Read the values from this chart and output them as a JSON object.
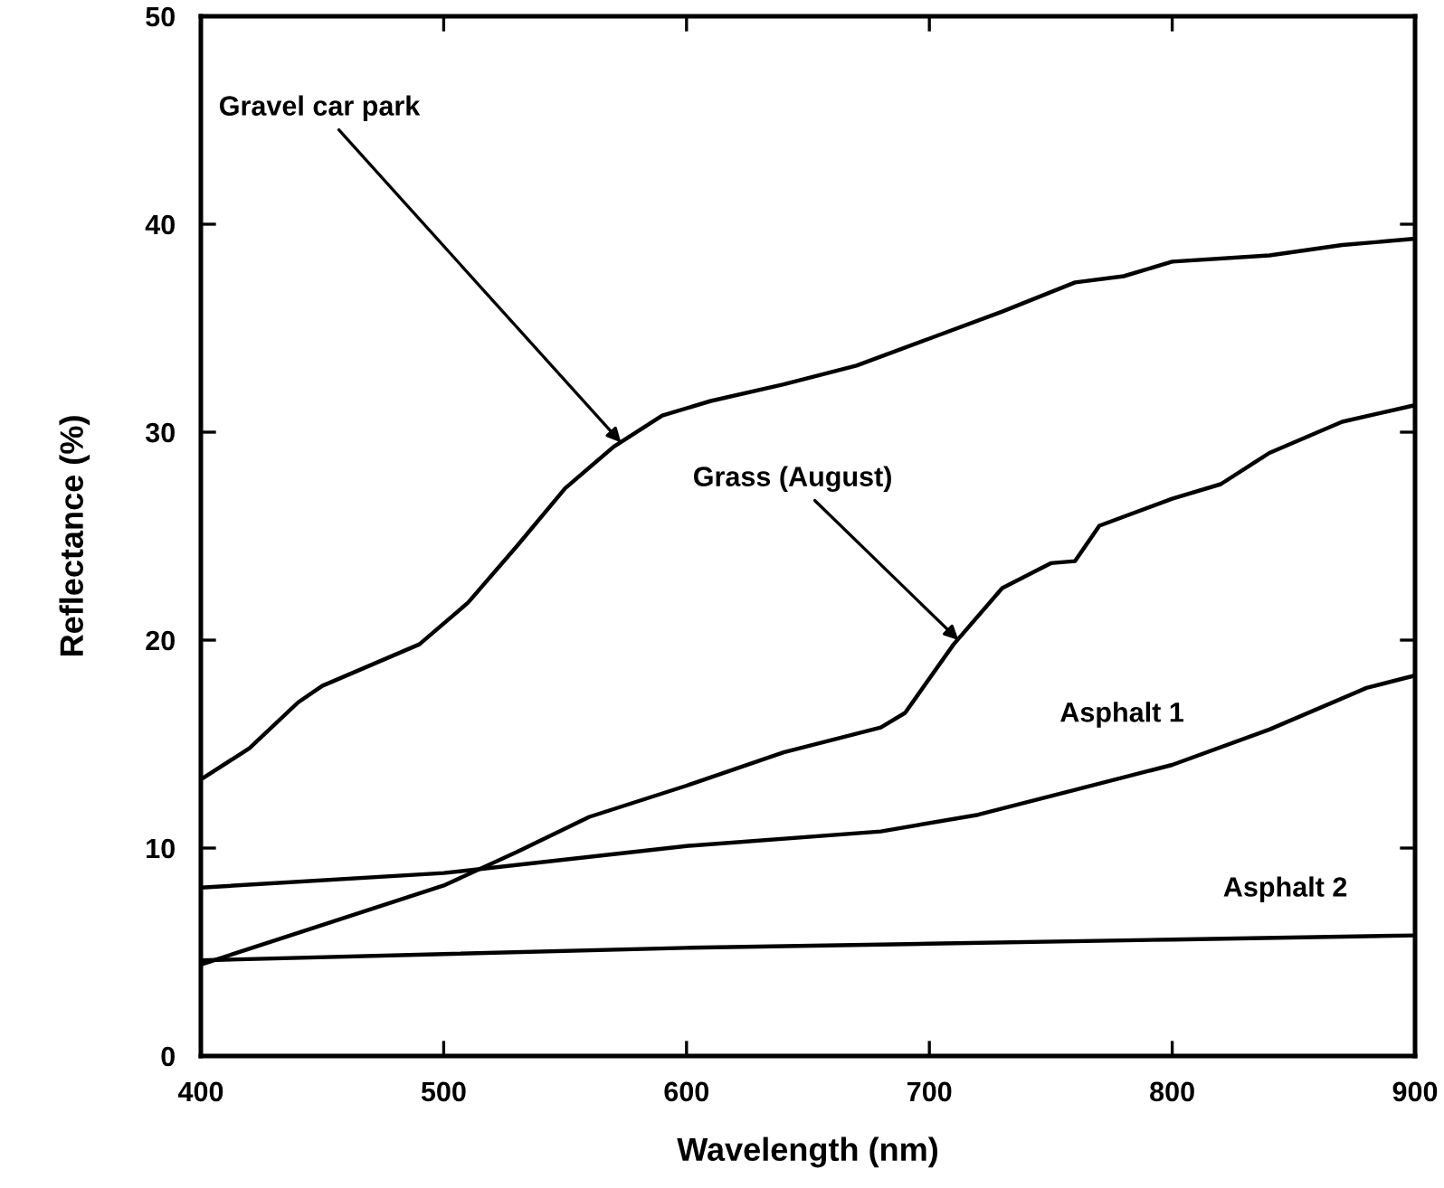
{
  "chart_data": {
    "type": "line",
    "xlabel": "Wavelength (nm)",
    "ylabel": "Reflectance (%)",
    "xlim": [
      400,
      900
    ],
    "xticks": [
      400,
      500,
      600,
      700,
      800,
      900
    ],
    "ylim": [
      0,
      50
    ],
    "yticks": [
      0,
      10,
      20,
      30,
      40,
      50
    ],
    "grid": false,
    "legend": false,
    "marker": "none",
    "line_style": "solid",
    "series": [
      {
        "color": "#000000",
        "x": [
          400,
          420,
          440,
          450,
          470,
          490,
          510,
          530,
          550,
          570,
          590,
          610,
          640,
          670,
          700,
          730,
          760,
          780,
          800,
          840,
          870,
          900
        ],
        "values": [
          13.3,
          14.8,
          17,
          17.8,
          18.8,
          19.8,
          21.8,
          24.5,
          27.3,
          29.3,
          30.8,
          31.5,
          32.3,
          33.2,
          34.5,
          35.8,
          37.2,
          37.5,
          38.2,
          38.5,
          39,
          39.3
        ]
      },
      {
        "color": "#000000",
        "x": [
          400,
          450,
          500,
          530,
          560,
          600,
          640,
          680,
          690,
          710,
          730,
          750,
          760,
          770,
          800,
          820,
          840,
          870,
          900
        ],
        "values": [
          4.4,
          6.3,
          8.2,
          9.8,
          11.5,
          13,
          14.6,
          15.8,
          16.5,
          19.8,
          22.5,
          23.7,
          23.8,
          25.5,
          26.8,
          27.5,
          29,
          30.5,
          31.3
        ]
      },
      {
        "name": "Asphalt 1",
        "color": "#000000",
        "x": [
          400,
          500,
          600,
          680,
          720,
          760,
          800,
          840,
          880,
          900
        ],
        "values": [
          8.1,
          8.8,
          10.1,
          10.8,
          11.6,
          12.8,
          14,
          15.7,
          17.7,
          18.3
        ]
      },
      {
        "name": "Asphalt 2",
        "color": "#000000",
        "x": [
          400,
          500,
          600,
          700,
          800,
          900
        ],
        "values": [
          4.6,
          4.9,
          5.2,
          5.4,
          5.6,
          5.8
        ]
      }
    ],
    "annotations": [
      {
        "text": "Gravel car park",
        "x": 573,
        "y": 29.5
      },
      {
        "text": "Grass (August)",
        "x": 712,
        "y": 20
      }
    ]
  }
}
